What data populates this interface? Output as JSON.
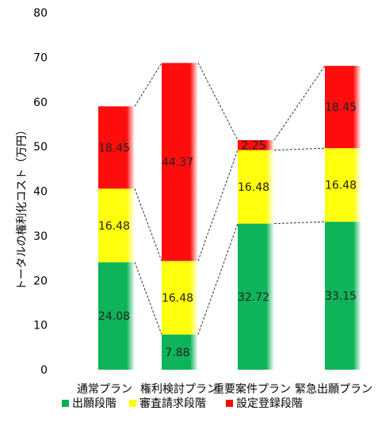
{
  "chart_data": {
    "type": "bar",
    "stacked": true,
    "ylabel": "トータルの権利化コスト（万円）",
    "ylim": [
      0,
      80
    ],
    "yticks": [
      0,
      10,
      20,
      30,
      40,
      50,
      60,
      70,
      80
    ],
    "grid": false,
    "legend_position": "bottom",
    "categories": [
      "通常プラン",
      "権利検討プラン",
      "重要案件プラン",
      "緊急出願プラン"
    ],
    "series": [
      {
        "name": "出願段階",
        "color": "#00b050",
        "values": [
          24.08,
          7.88,
          32.72,
          33.15
        ]
      },
      {
        "name": "審査請求段階",
        "color": "#ffff00",
        "values": [
          16.48,
          16.48,
          16.48,
          16.48
        ]
      },
      {
        "name": "設定登録段階",
        "color": "#ff0000",
        "values": [
          18.45,
          44.37,
          2.25,
          18.45
        ]
      }
    ],
    "connector_lines": "dashed"
  }
}
